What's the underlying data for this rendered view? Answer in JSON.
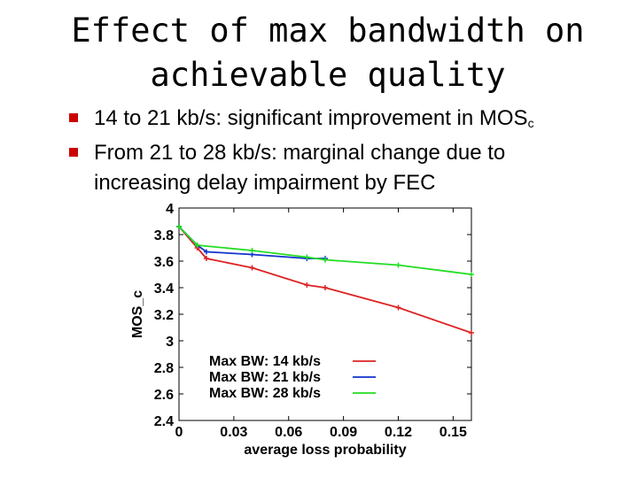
{
  "slide": {
    "title_line1": "Effect of max bandwidth on",
    "title_line2": "achievable quality",
    "bullets": [
      {
        "text": "14 to 21 kb/s: significant improvement in MOS",
        "subscript": "c"
      },
      {
        "text_line1": "From 21 to 28 kb/s: marginal change due to",
        "text_line2": "increasing delay impairment by FEC"
      }
    ],
    "marker_color": "#cc0000"
  },
  "chart_data": {
    "type": "line",
    "xlabel": "average loss probability",
    "ylabel": "MOS_c",
    "xlim": [
      0,
      0.16
    ],
    "ylim": [
      2.4,
      4
    ],
    "xticks": [
      0,
      0.03,
      0.06,
      0.09,
      0.12,
      0.15
    ],
    "xtick_labels": [
      "0",
      "0.03",
      "0.06",
      "0.09",
      "0.12",
      "0.15"
    ],
    "yticks": [
      2.4,
      2.6,
      2.8,
      3,
      3.2,
      3.4,
      3.6,
      3.8,
      4
    ],
    "ytick_labels": [
      "2.4",
      "2.6",
      "2.8",
      "3",
      "3.2",
      "3.4",
      "3.6",
      "3.8",
      "4"
    ],
    "legend_position": "bottom-left",
    "series": [
      {
        "name": "Max BW: 14 kb/s",
        "color": "#dd2222",
        "x": [
          0,
          0.01,
          0.015,
          0.04,
          0.07,
          0.08,
          0.12,
          0.16
        ],
        "y": [
          3.86,
          3.7,
          3.62,
          3.55,
          3.42,
          3.4,
          3.25,
          3.06
        ]
      },
      {
        "name": "Max BW: 21 kb/s",
        "color": "#1133cc",
        "x": [
          0,
          0.01,
          0.015,
          0.04,
          0.07,
          0.08
        ],
        "y": [
          3.86,
          3.72,
          3.67,
          3.65,
          3.62,
          3.62
        ]
      },
      {
        "name": "Max BW: 28 kb/s",
        "color": "#22dd22",
        "x": [
          0,
          0.01,
          0.04,
          0.07,
          0.08,
          0.12,
          0.16
        ],
        "y": [
          3.86,
          3.72,
          3.68,
          3.63,
          3.61,
          3.57,
          3.5
        ]
      }
    ]
  }
}
